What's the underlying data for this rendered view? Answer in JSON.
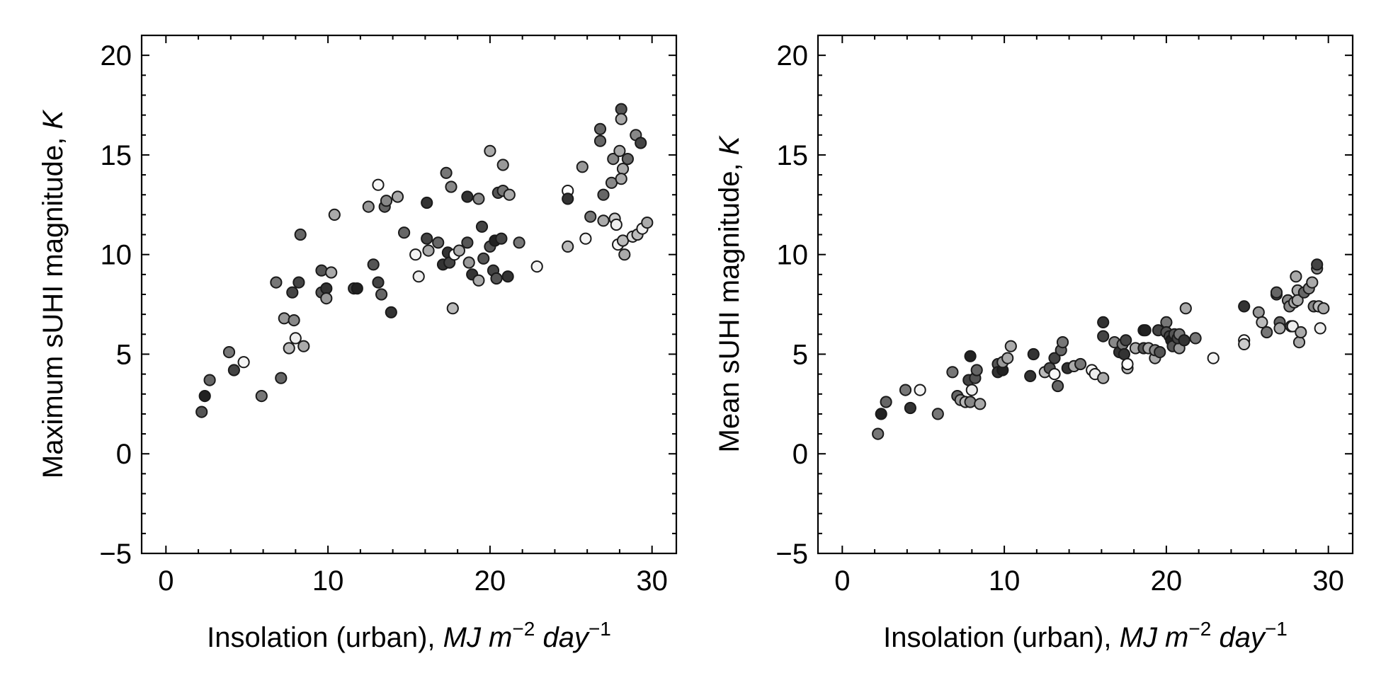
{
  "chart_data": [
    {
      "type": "scatter",
      "title": "",
      "xlabel": {
        "text": "Insolation (urban), ",
        "unit_main": "MJ m",
        "sup1": "−2",
        "unit_day": " day",
        "sup2": "−1"
      },
      "ylabel": {
        "text": "Maximum sUHI magnitude, ",
        "unit": "K"
      },
      "xlim": [
        -1.5,
        31.5
      ],
      "ylim": [
        -5,
        21
      ],
      "xticks": [
        0,
        10,
        20,
        30
      ],
      "xtick_labels": [
        "0",
        "10",
        "20",
        "30"
      ],
      "yticks": [
        -5,
        0,
        5,
        10,
        15,
        20
      ],
      "ytick_labels": [
        "−5",
        "0",
        "5",
        "10",
        "15",
        "20"
      ],
      "grid": false,
      "marker_edge_color": "#1a1a1a",
      "points": [
        {
          "x": 2.2,
          "y": 2.1,
          "fill": "#555555"
        },
        {
          "x": 2.4,
          "y": 2.9,
          "fill": "#222222"
        },
        {
          "x": 2.7,
          "y": 3.7,
          "fill": "#666666"
        },
        {
          "x": 3.9,
          "y": 5.1,
          "fill": "#777777"
        },
        {
          "x": 4.2,
          "y": 4.2,
          "fill": "#444444"
        },
        {
          "x": 4.8,
          "y": 4.6,
          "fill": "#f4f4f4"
        },
        {
          "x": 5.9,
          "y": 2.9,
          "fill": "#777777"
        },
        {
          "x": 6.8,
          "y": 8.6,
          "fill": "#777777"
        },
        {
          "x": 7.1,
          "y": 3.8,
          "fill": "#666666"
        },
        {
          "x": 7.3,
          "y": 6.8,
          "fill": "#999999"
        },
        {
          "x": 7.6,
          "y": 5.3,
          "fill": "#bbbbbb"
        },
        {
          "x": 7.8,
          "y": 8.1,
          "fill": "#444444"
        },
        {
          "x": 7.9,
          "y": 6.7,
          "fill": "#888888"
        },
        {
          "x": 8.0,
          "y": 5.8,
          "fill": "#eeeeee"
        },
        {
          "x": 8.2,
          "y": 8.6,
          "fill": "#444444"
        },
        {
          "x": 8.3,
          "y": 11.0,
          "fill": "#666666"
        },
        {
          "x": 8.5,
          "y": 5.4,
          "fill": "#aaaaaa"
        },
        {
          "x": 9.6,
          "y": 8.1,
          "fill": "#555555"
        },
        {
          "x": 9.6,
          "y": 9.2,
          "fill": "#555555"
        },
        {
          "x": 9.9,
          "y": 8.3,
          "fill": "#333333"
        },
        {
          "x": 9.9,
          "y": 7.8,
          "fill": "#999999"
        },
        {
          "x": 10.2,
          "y": 9.1,
          "fill": "#aaaaaa"
        },
        {
          "x": 10.4,
          "y": 12.0,
          "fill": "#aaaaaa"
        },
        {
          "x": 11.6,
          "y": 8.3,
          "fill": "#444444"
        },
        {
          "x": 11.8,
          "y": 8.3,
          "fill": "#222222"
        },
        {
          "x": 12.5,
          "y": 12.4,
          "fill": "#999999"
        },
        {
          "x": 12.8,
          "y": 9.5,
          "fill": "#555555"
        },
        {
          "x": 13.1,
          "y": 13.5,
          "fill": "#f8f8f8"
        },
        {
          "x": 13.1,
          "y": 8.6,
          "fill": "#444444"
        },
        {
          "x": 13.3,
          "y": 8.0,
          "fill": "#666666"
        },
        {
          "x": 13.5,
          "y": 12.4,
          "fill": "#666666"
        },
        {
          "x": 13.6,
          "y": 12.7,
          "fill": "#888888"
        },
        {
          "x": 13.9,
          "y": 7.1,
          "fill": "#333333"
        },
        {
          "x": 14.3,
          "y": 12.9,
          "fill": "#aaaaaa"
        },
        {
          "x": 14.7,
          "y": 11.1,
          "fill": "#666666"
        },
        {
          "x": 15.4,
          "y": 10.0,
          "fill": "#f4f4f4"
        },
        {
          "x": 15.6,
          "y": 8.9,
          "fill": "#eeeeee"
        },
        {
          "x": 16.1,
          "y": 12.6,
          "fill": "#333333"
        },
        {
          "x": 16.1,
          "y": 10.8,
          "fill": "#444444"
        },
        {
          "x": 16.2,
          "y": 10.2,
          "fill": "#aaaaaa"
        },
        {
          "x": 16.8,
          "y": 10.6,
          "fill": "#666666"
        },
        {
          "x": 17.1,
          "y": 9.5,
          "fill": "#333333"
        },
        {
          "x": 17.3,
          "y": 14.1,
          "fill": "#777777"
        },
        {
          "x": 17.4,
          "y": 10.1,
          "fill": "#333333"
        },
        {
          "x": 17.5,
          "y": 9.6,
          "fill": "#444444"
        },
        {
          "x": 17.6,
          "y": 13.4,
          "fill": "#888888"
        },
        {
          "x": 17.7,
          "y": 7.3,
          "fill": "#bbbbbb"
        },
        {
          "x": 17.8,
          "y": 10.0,
          "fill": "#ffffff"
        },
        {
          "x": 18.1,
          "y": 10.2,
          "fill": "#aaaaaa"
        },
        {
          "x": 18.6,
          "y": 12.9,
          "fill": "#333333"
        },
        {
          "x": 18.6,
          "y": 10.6,
          "fill": "#555555"
        },
        {
          "x": 18.7,
          "y": 9.6,
          "fill": "#999999"
        },
        {
          "x": 18.9,
          "y": 9.0,
          "fill": "#333333"
        },
        {
          "x": 19.3,
          "y": 8.7,
          "fill": "#aaaaaa"
        },
        {
          "x": 19.3,
          "y": 12.8,
          "fill": "#888888"
        },
        {
          "x": 19.5,
          "y": 11.4,
          "fill": "#444444"
        },
        {
          "x": 19.6,
          "y": 9.8,
          "fill": "#555555"
        },
        {
          "x": 20.0,
          "y": 15.2,
          "fill": "#aaaaaa"
        },
        {
          "x": 20.0,
          "y": 10.4,
          "fill": "#555555"
        },
        {
          "x": 20.2,
          "y": 9.2,
          "fill": "#444444"
        },
        {
          "x": 20.3,
          "y": 10.7,
          "fill": "#222222"
        },
        {
          "x": 20.4,
          "y": 8.8,
          "fill": "#555555"
        },
        {
          "x": 20.5,
          "y": 13.1,
          "fill": "#555555"
        },
        {
          "x": 20.8,
          "y": 14.5,
          "fill": "#999999"
        },
        {
          "x": 20.7,
          "y": 10.8,
          "fill": "#444444"
        },
        {
          "x": 20.8,
          "y": 13.2,
          "fill": "#777777"
        },
        {
          "x": 21.1,
          "y": 8.9,
          "fill": "#333333"
        },
        {
          "x": 21.2,
          "y": 13.0,
          "fill": "#aaaaaa"
        },
        {
          "x": 21.8,
          "y": 10.6,
          "fill": "#777777"
        },
        {
          "x": 22.9,
          "y": 9.4,
          "fill": "#f4f4f4"
        },
        {
          "x": 24.8,
          "y": 13.2,
          "fill": "#ffffff"
        },
        {
          "x": 24.8,
          "y": 12.8,
          "fill": "#333333"
        },
        {
          "x": 24.8,
          "y": 10.4,
          "fill": "#bbbbbb"
        },
        {
          "x": 25.7,
          "y": 14.4,
          "fill": "#999999"
        },
        {
          "x": 25.9,
          "y": 10.8,
          "fill": "#f4f4f4"
        },
        {
          "x": 26.2,
          "y": 11.9,
          "fill": "#777777"
        },
        {
          "x": 26.8,
          "y": 16.3,
          "fill": "#666666"
        },
        {
          "x": 26.8,
          "y": 15.7,
          "fill": "#666666"
        },
        {
          "x": 27.0,
          "y": 13.0,
          "fill": "#666666"
        },
        {
          "x": 27.0,
          "y": 11.7,
          "fill": "#aaaaaa"
        },
        {
          "x": 27.5,
          "y": 13.6,
          "fill": "#888888"
        },
        {
          "x": 27.6,
          "y": 14.8,
          "fill": "#888888"
        },
        {
          "x": 27.7,
          "y": 11.8,
          "fill": "#cccccc"
        },
        {
          "x": 27.8,
          "y": 11.5,
          "fill": "#eeeeee"
        },
        {
          "x": 27.9,
          "y": 10.5,
          "fill": "#f4f4f4"
        },
        {
          "x": 28.0,
          "y": 15.2,
          "fill": "#aaaaaa"
        },
        {
          "x": 28.1,
          "y": 17.3,
          "fill": "#555555"
        },
        {
          "x": 28.1,
          "y": 16.8,
          "fill": "#aaaaaa"
        },
        {
          "x": 28.2,
          "y": 14.3,
          "fill": "#aaaaaa"
        },
        {
          "x": 28.1,
          "y": 13.8,
          "fill": "#aaaaaa"
        },
        {
          "x": 28.2,
          "y": 10.7,
          "fill": "#bbbbbb"
        },
        {
          "x": 28.3,
          "y": 10.0,
          "fill": "#aaaaaa"
        },
        {
          "x": 28.5,
          "y": 14.8,
          "fill": "#666666"
        },
        {
          "x": 28.8,
          "y": 10.9,
          "fill": "#dddddd"
        },
        {
          "x": 29.0,
          "y": 16.0,
          "fill": "#888888"
        },
        {
          "x": 29.1,
          "y": 11.0,
          "fill": "#bbbbbb"
        },
        {
          "x": 29.3,
          "y": 15.6,
          "fill": "#444444"
        },
        {
          "x": 29.4,
          "y": 11.3,
          "fill": "#eeeeee"
        },
        {
          "x": 29.7,
          "y": 11.6,
          "fill": "#aaaaaa"
        }
      ]
    },
    {
      "type": "scatter",
      "title": "",
      "xlabel": {
        "text": "Insolation (urban), ",
        "unit_main": "MJ m",
        "sup1": "−2",
        "unit_day": " day",
        "sup2": "−1"
      },
      "ylabel": {
        "text": "Mean sUHI magnitude, ",
        "unit": "K"
      },
      "xlim": [
        -1.5,
        31.5
      ],
      "ylim": [
        -5,
        21
      ],
      "xticks": [
        0,
        10,
        20,
        30
      ],
      "xtick_labels": [
        "0",
        "10",
        "20",
        "30"
      ],
      "yticks": [
        -5,
        0,
        5,
        10,
        15,
        20
      ],
      "ytick_labels": [
        "−5",
        "0",
        "5",
        "10",
        "15",
        "20"
      ],
      "grid": false,
      "marker_edge_color": "#1a1a1a",
      "points": [
        {
          "x": 2.2,
          "y": 1.0,
          "fill": "#777777"
        },
        {
          "x": 2.4,
          "y": 2.0,
          "fill": "#222222"
        },
        {
          "x": 2.7,
          "y": 2.6,
          "fill": "#666666"
        },
        {
          "x": 3.9,
          "y": 3.2,
          "fill": "#777777"
        },
        {
          "x": 4.2,
          "y": 2.3,
          "fill": "#333333"
        },
        {
          "x": 4.8,
          "y": 3.2,
          "fill": "#f4f4f4"
        },
        {
          "x": 5.9,
          "y": 2.0,
          "fill": "#777777"
        },
        {
          "x": 6.8,
          "y": 4.1,
          "fill": "#777777"
        },
        {
          "x": 7.1,
          "y": 2.9,
          "fill": "#666666"
        },
        {
          "x": 7.3,
          "y": 2.7,
          "fill": "#999999"
        },
        {
          "x": 7.6,
          "y": 2.6,
          "fill": "#bbbbbb"
        },
        {
          "x": 7.8,
          "y": 3.7,
          "fill": "#444444"
        },
        {
          "x": 7.9,
          "y": 2.6,
          "fill": "#888888"
        },
        {
          "x": 8.0,
          "y": 3.2,
          "fill": "#eeeeee"
        },
        {
          "x": 7.9,
          "y": 4.9,
          "fill": "#222222"
        },
        {
          "x": 8.2,
          "y": 3.8,
          "fill": "#555555"
        },
        {
          "x": 8.5,
          "y": 2.5,
          "fill": "#aaaaaa"
        },
        {
          "x": 8.3,
          "y": 4.2,
          "fill": "#666666"
        },
        {
          "x": 9.6,
          "y": 4.5,
          "fill": "#555555"
        },
        {
          "x": 9.6,
          "y": 4.1,
          "fill": "#333333"
        },
        {
          "x": 9.9,
          "y": 4.2,
          "fill": "#222222"
        },
        {
          "x": 9.9,
          "y": 4.6,
          "fill": "#999999"
        },
        {
          "x": 10.2,
          "y": 4.8,
          "fill": "#aaaaaa"
        },
        {
          "x": 10.4,
          "y": 5.4,
          "fill": "#aaaaaa"
        },
        {
          "x": 11.6,
          "y": 3.9,
          "fill": "#333333"
        },
        {
          "x": 11.8,
          "y": 5.0,
          "fill": "#333333"
        },
        {
          "x": 12.5,
          "y": 4.1,
          "fill": "#bbbbbb"
        },
        {
          "x": 12.8,
          "y": 4.3,
          "fill": "#555555"
        },
        {
          "x": 13.1,
          "y": 4.0,
          "fill": "#f8f8f8"
        },
        {
          "x": 13.1,
          "y": 4.8,
          "fill": "#444444"
        },
        {
          "x": 13.3,
          "y": 3.4,
          "fill": "#666666"
        },
        {
          "x": 13.5,
          "y": 5.2,
          "fill": "#666666"
        },
        {
          "x": 13.6,
          "y": 5.6,
          "fill": "#777777"
        },
        {
          "x": 13.9,
          "y": 4.3,
          "fill": "#333333"
        },
        {
          "x": 14.3,
          "y": 4.4,
          "fill": "#aaaaaa"
        },
        {
          "x": 14.7,
          "y": 4.5,
          "fill": "#777777"
        },
        {
          "x": 15.4,
          "y": 4.2,
          "fill": "#f4f4f4"
        },
        {
          "x": 15.6,
          "y": 4.0,
          "fill": "#eeeeee"
        },
        {
          "x": 16.1,
          "y": 3.8,
          "fill": "#aaaaaa"
        },
        {
          "x": 16.1,
          "y": 6.6,
          "fill": "#333333"
        },
        {
          "x": 16.1,
          "y": 5.9,
          "fill": "#444444"
        },
        {
          "x": 16.8,
          "y": 5.6,
          "fill": "#888888"
        },
        {
          "x": 17.1,
          "y": 5.1,
          "fill": "#333333"
        },
        {
          "x": 17.3,
          "y": 5.5,
          "fill": "#777777"
        },
        {
          "x": 17.4,
          "y": 5.0,
          "fill": "#333333"
        },
        {
          "x": 17.5,
          "y": 5.7,
          "fill": "#444444"
        },
        {
          "x": 17.6,
          "y": 4.3,
          "fill": "#bbbbbb"
        },
        {
          "x": 17.6,
          "y": 4.5,
          "fill": "#ffffff"
        },
        {
          "x": 18.1,
          "y": 5.3,
          "fill": "#aaaaaa"
        },
        {
          "x": 18.6,
          "y": 6.2,
          "fill": "#333333"
        },
        {
          "x": 18.6,
          "y": 5.3,
          "fill": "#555555"
        },
        {
          "x": 18.7,
          "y": 6.2,
          "fill": "#222222"
        },
        {
          "x": 18.9,
          "y": 5.3,
          "fill": "#aaaaaa"
        },
        {
          "x": 19.3,
          "y": 4.8,
          "fill": "#aaaaaa"
        },
        {
          "x": 19.3,
          "y": 5.2,
          "fill": "#888888"
        },
        {
          "x": 19.5,
          "y": 6.2,
          "fill": "#444444"
        },
        {
          "x": 19.6,
          "y": 5.1,
          "fill": "#555555"
        },
        {
          "x": 20.0,
          "y": 6.6,
          "fill": "#777777"
        },
        {
          "x": 20.0,
          "y": 6.1,
          "fill": "#555555"
        },
        {
          "x": 20.2,
          "y": 5.9,
          "fill": "#444444"
        },
        {
          "x": 20.3,
          "y": 5.7,
          "fill": "#222222"
        },
        {
          "x": 20.4,
          "y": 5.4,
          "fill": "#555555"
        },
        {
          "x": 20.5,
          "y": 6.0,
          "fill": "#555555"
        },
        {
          "x": 20.8,
          "y": 5.3,
          "fill": "#999999"
        },
        {
          "x": 20.7,
          "y": 5.8,
          "fill": "#444444"
        },
        {
          "x": 20.8,
          "y": 6.0,
          "fill": "#777777"
        },
        {
          "x": 21.1,
          "y": 5.7,
          "fill": "#333333"
        },
        {
          "x": 21.2,
          "y": 7.3,
          "fill": "#aaaaaa"
        },
        {
          "x": 21.8,
          "y": 5.8,
          "fill": "#777777"
        },
        {
          "x": 22.9,
          "y": 4.8,
          "fill": "#f4f4f4"
        },
        {
          "x": 24.8,
          "y": 7.4,
          "fill": "#333333"
        },
        {
          "x": 24.8,
          "y": 5.7,
          "fill": "#ffffff"
        },
        {
          "x": 24.8,
          "y": 5.5,
          "fill": "#cccccc"
        },
        {
          "x": 25.7,
          "y": 7.1,
          "fill": "#999999"
        },
        {
          "x": 25.9,
          "y": 6.6,
          "fill": "#bbbbbb"
        },
        {
          "x": 26.2,
          "y": 6.1,
          "fill": "#777777"
        },
        {
          "x": 26.8,
          "y": 8.0,
          "fill": "#555555"
        },
        {
          "x": 26.8,
          "y": 8.1,
          "fill": "#666666"
        },
        {
          "x": 27.0,
          "y": 6.6,
          "fill": "#666666"
        },
        {
          "x": 27.0,
          "y": 6.3,
          "fill": "#aaaaaa"
        },
        {
          "x": 27.5,
          "y": 7.7,
          "fill": "#888888"
        },
        {
          "x": 27.6,
          "y": 7.4,
          "fill": "#888888"
        },
        {
          "x": 27.7,
          "y": 6.4,
          "fill": "#cccccc"
        },
        {
          "x": 27.8,
          "y": 6.4,
          "fill": "#eeeeee"
        },
        {
          "x": 27.9,
          "y": 7.6,
          "fill": "#aaaaaa"
        },
        {
          "x": 28.0,
          "y": 8.9,
          "fill": "#aaaaaa"
        },
        {
          "x": 28.1,
          "y": 8.2,
          "fill": "#aaaaaa"
        },
        {
          "x": 28.1,
          "y": 7.7,
          "fill": "#aaaaaa"
        },
        {
          "x": 28.2,
          "y": 5.6,
          "fill": "#aaaaaa"
        },
        {
          "x": 28.3,
          "y": 6.1,
          "fill": "#aaaaaa"
        },
        {
          "x": 28.5,
          "y": 8.1,
          "fill": "#666666"
        },
        {
          "x": 28.8,
          "y": 8.3,
          "fill": "#888888"
        },
        {
          "x": 29.0,
          "y": 8.6,
          "fill": "#aaaaaa"
        },
        {
          "x": 29.1,
          "y": 7.4,
          "fill": "#888888"
        },
        {
          "x": 29.3,
          "y": 9.3,
          "fill": "#888888"
        },
        {
          "x": 29.3,
          "y": 9.5,
          "fill": "#444444"
        },
        {
          "x": 29.4,
          "y": 7.4,
          "fill": "#bbbbbb"
        },
        {
          "x": 29.5,
          "y": 6.3,
          "fill": "#eeeeee"
        },
        {
          "x": 29.7,
          "y": 7.3,
          "fill": "#aaaaaa"
        }
      ]
    }
  ]
}
